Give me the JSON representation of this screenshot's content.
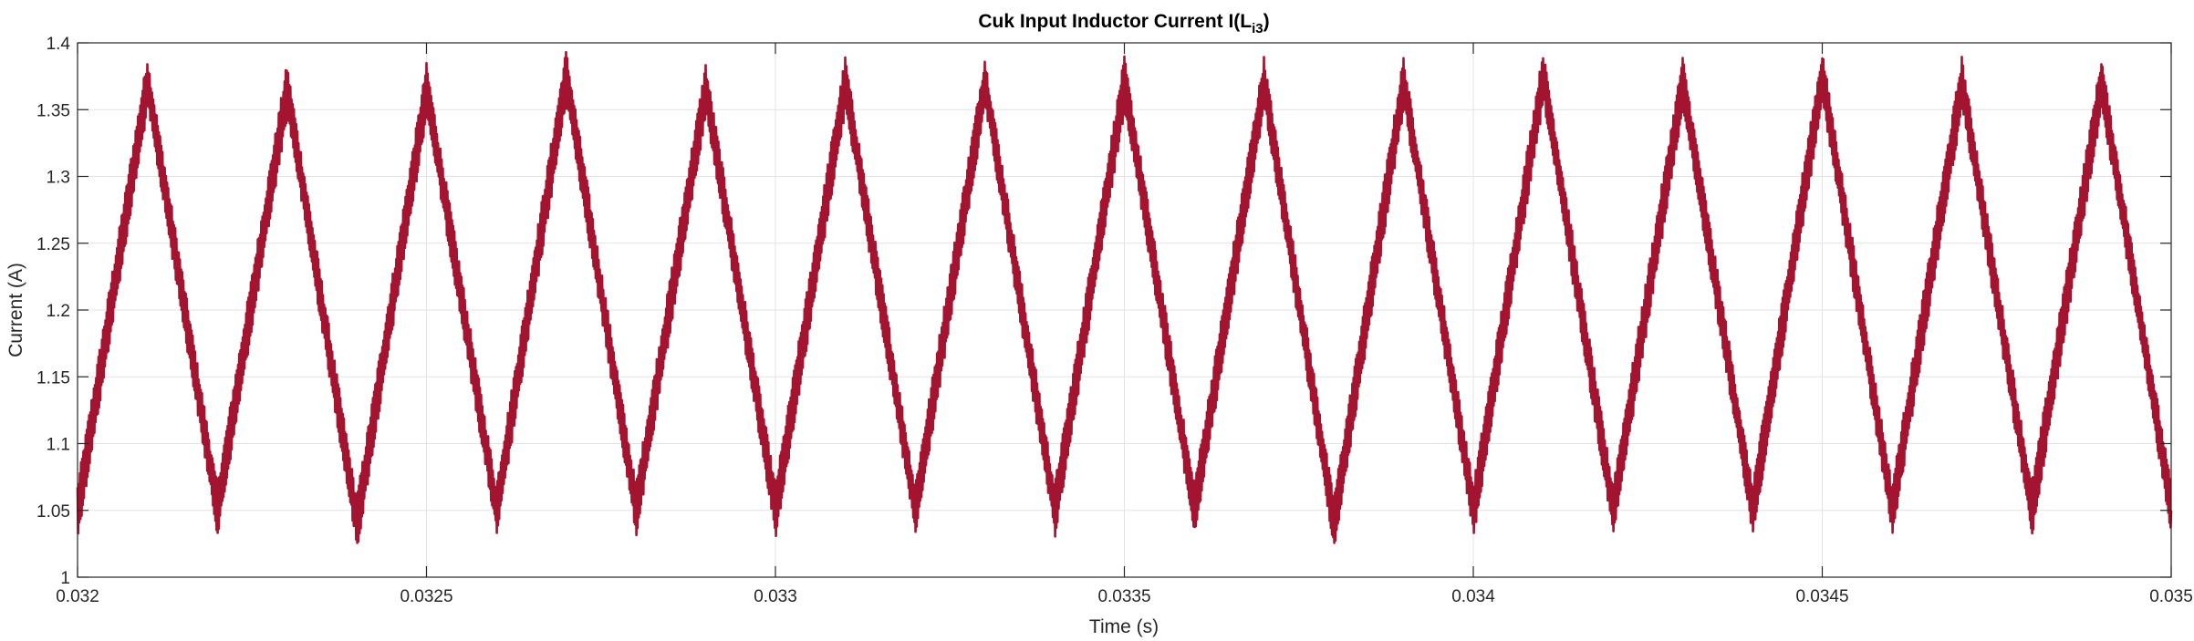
{
  "chart_data": {
    "type": "line",
    "title": "Cuk Input Inductor Current I(L",
    "title_subscript": "i3",
    "title_suffix": ")",
    "xlabel": "Time (s)",
    "ylabel": "Current (A)",
    "xlim": [
      0.032,
      0.035
    ],
    "ylim": [
      1.0,
      1.4
    ],
    "xticks": [
      0.032,
      0.0325,
      0.033,
      0.0335,
      0.034,
      0.0345,
      0.035
    ],
    "xtick_labels": [
      "0.032",
      "0.0325",
      "0.033",
      "0.0335",
      "0.034",
      "0.0345",
      "0.035"
    ],
    "yticks": [
      1.0,
      1.05,
      1.1,
      1.15,
      1.2,
      1.25,
      1.3,
      1.35,
      1.4
    ],
    "ytick_labels": [
      "1",
      "1.05",
      "1.1",
      "1.15",
      "1.2",
      "1.25",
      "1.3",
      "1.35",
      "1.4"
    ],
    "grid": true,
    "series": [
      {
        "color": "#A2142F",
        "x": [
          0.032,
          0.0321,
          0.0322,
          0.0323,
          0.0324,
          0.0325,
          0.0326,
          0.0327,
          0.0328,
          0.0329,
          0.033,
          0.0331,
          0.0332,
          0.0333,
          0.0334,
          0.0335,
          0.0336,
          0.0337,
          0.0338,
          0.0339,
          0.034,
          0.0341,
          0.0342,
          0.0343,
          0.0344,
          0.0345,
          0.0346,
          0.0347,
          0.0348,
          0.0349,
          0.035
        ],
        "y": [
          1.05,
          1.37,
          1.05,
          1.365,
          1.04,
          1.365,
          1.05,
          1.375,
          1.05,
          1.365,
          1.05,
          1.37,
          1.05,
          1.37,
          1.05,
          1.37,
          1.05,
          1.37,
          1.04,
          1.37,
          1.05,
          1.375,
          1.05,
          1.37,
          1.05,
          1.375,
          1.05,
          1.37,
          1.05,
          1.37,
          1.05
        ]
      }
    ]
  }
}
